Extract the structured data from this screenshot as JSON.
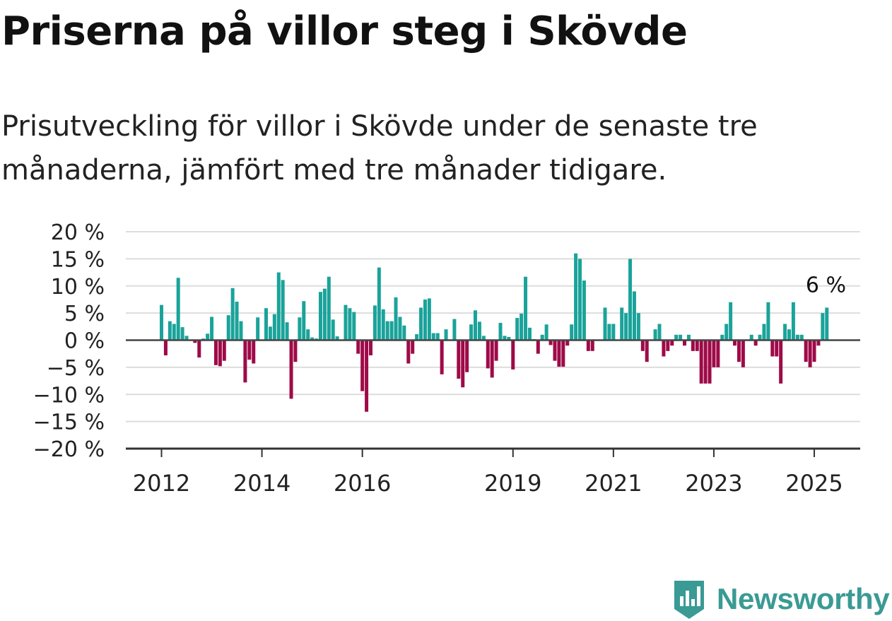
{
  "header": {
    "title": "Priserna på villor steg i Skövde",
    "subtitle": "Prisutveckling för villor i Skövde under de senaste tre månaderna, jämfört med tre månader tidigare."
  },
  "brand": {
    "name": "Newsworthy"
  },
  "colors": {
    "positive": "#1aa39a",
    "negative": "#9e0a48",
    "axis": "#333333",
    "grid": "#dddddd",
    "brand": "#3a9a94"
  },
  "chart_data": {
    "type": "bar",
    "title": "",
    "xlabel": "",
    "ylabel": "",
    "ylim": [
      -20,
      20
    ],
    "grid": true,
    "y_ticks": [
      20,
      15,
      10,
      5,
      0,
      -5,
      -10,
      -15,
      -20
    ],
    "y_tick_labels": [
      "20 %",
      "15 %",
      "10 %",
      "5 %",
      "0 %",
      "−5 %",
      "−10 %",
      "−15 %",
      "−20 %"
    ],
    "x_ticks": [
      "2012",
      "2014",
      "2016",
      "2019",
      "2021",
      "2023",
      "2025"
    ],
    "x_tick_positions": [
      0,
      24,
      48,
      84,
      108,
      132,
      156
    ],
    "annotation": "6 %",
    "start": "2012-01",
    "values": [
      6.5,
      -2.8,
      3.5,
      3,
      11.5,
      2.4,
      0.8,
      -0.1,
      -0.5,
      -3.2,
      0.3,
      1.2,
      4.3,
      -4.6,
      -4.8,
      -3.8,
      4.6,
      9.6,
      7.1,
      3.5,
      -7.8,
      -3.6,
      -4.3,
      4.2,
      0,
      5.9,
      2.5,
      4.8,
      12.5,
      11.1,
      3.3,
      -10.8,
      -4,
      4.2,
      7.2,
      2,
      0.5,
      0.3,
      8.9,
      9.5,
      11.7,
      3.8,
      0.7,
      0,
      6.5,
      5.9,
      5.2,
      -2.5,
      -9.4,
      -13.2,
      -2.8,
      6.4,
      13.4,
      5.7,
      3.5,
      3.5,
      7.9,
      4.3,
      2.7,
      -4.3,
      -2.5,
      1.1,
      6,
      7.5,
      7.7,
      1.3,
      1.3,
      -6.3,
      2,
      0,
      3.9,
      -7.1,
      -8.7,
      -5.9,
      2.9,
      5.5,
      3.4,
      0.8,
      -5.2,
      -6.9,
      -3.8,
      3.2,
      0.8,
      0.6,
      -5.4,
      4.1,
      4.9,
      11.7,
      2.3,
      0.2,
      -2.5,
      1,
      2.9,
      -0.9,
      -3.8,
      -4.9,
      -4.9,
      -1,
      2.9,
      16,
      15,
      11,
      -2,
      -2,
      0,
      0,
      6,
      3,
      3,
      0,
      6,
      5,
      15,
      9,
      5,
      -2,
      -4,
      0,
      2,
      3,
      -3,
      -2,
      -1,
      1,
      1,
      -1,
      1,
      -2,
      -2,
      -8,
      -8,
      -8,
      -5,
      -5,
      1,
      3,
      7,
      -1,
      -4,
      -5,
      0,
      1,
      -1,
      1,
      3,
      7,
      -3,
      -3,
      -8,
      3,
      2,
      7,
      1,
      1,
      -4,
      -5,
      -4,
      -1,
      5,
      6
    ]
  }
}
